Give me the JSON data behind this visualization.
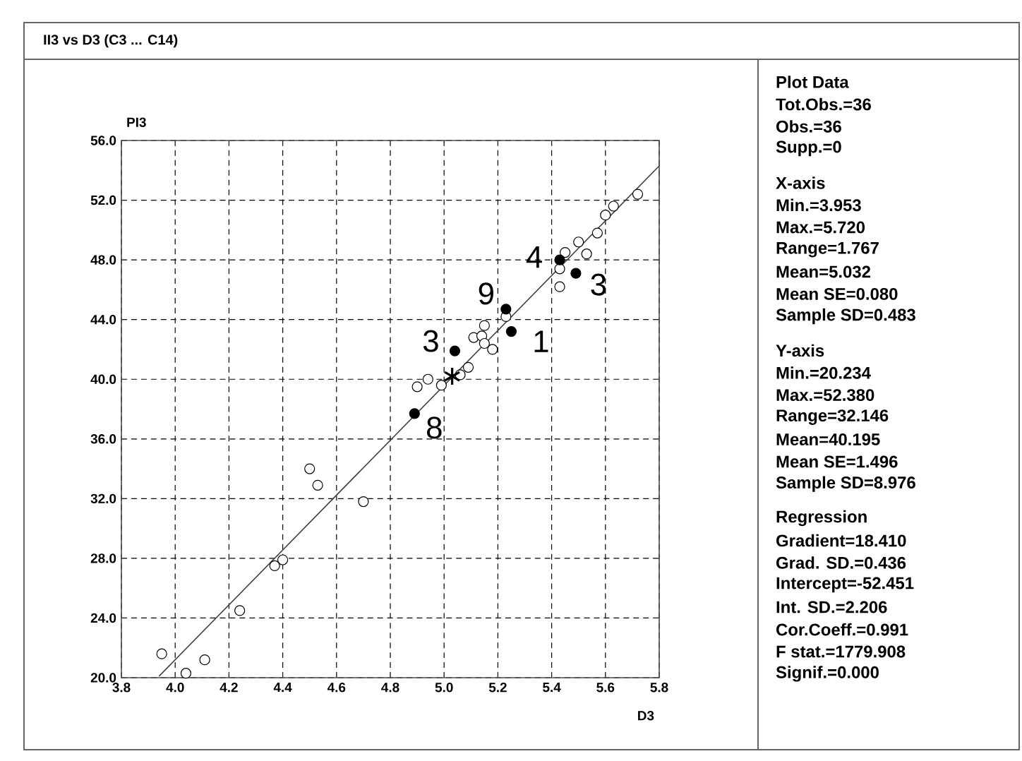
{
  "chart_data": {
    "type": "scatter",
    "title": "II3 vs D3 (C3 ... C14)",
    "xlabel": "D3",
    "ylabel": "PI3",
    "xlim": [
      3.8,
      5.8
    ],
    "ylim": [
      20,
      56
    ],
    "xticks": [
      3.8,
      {
        "value": 4,
        "label": "4.0"
      },
      4.2,
      4.4,
      4.6,
      4.8,
      {
        "value": 5,
        "label": "5.0"
      },
      5.2,
      5.4,
      5.6,
      5.8
    ],
    "yticks": [
      {
        "value": 20,
        "label": "20.0"
      },
      {
        "value": 24,
        "label": "24.0"
      },
      {
        "value": 28,
        "label": "28.0"
      },
      {
        "value": 32,
        "label": "32.0"
      },
      {
        "value": 36,
        "label": "36.0"
      },
      {
        "value": 40,
        "label": "40.0"
      },
      {
        "value": 44,
        "label": "44.0"
      },
      {
        "value": 48,
        "label": "48.0"
      },
      {
        "value": 52,
        "label": "52.0"
      },
      {
        "value": 56,
        "label": "56.0"
      }
    ],
    "grid": true,
    "series": [
      {
        "type": "line",
        "color": "#404040",
        "marker": "none",
        "x": [
          3.94,
          5.8
        ],
        "values": [
          20.1,
          54.3
        ]
      },
      {
        "type": "scatter",
        "color": "#ffffff",
        "marker": "circle",
        "x": [
          3.95,
          4.04,
          4.11,
          4.24,
          4.37,
          4.4,
          4.5,
          4.53,
          4.7,
          4.9,
          4.94,
          4.99,
          5.06,
          5.09,
          5.11,
          5.14,
          5.15,
          5.15,
          5.18,
          5.23,
          5.43,
          5.43,
          5.45,
          5.5,
          5.53,
          5.57,
          5.6,
          5.63,
          5.72
        ],
        "values": [
          21.6,
          20.3,
          21.2,
          24.5,
          27.5,
          27.9,
          34.0,
          32.9,
          31.8,
          39.5,
          40.0,
          39.6,
          40.3,
          40.8,
          42.8,
          42.9,
          42.4,
          43.6,
          42.0,
          44.2,
          47.4,
          46.2,
          48.5,
          49.2,
          48.4,
          49.8,
          51.0,
          51.6,
          52.4
        ]
      },
      {
        "type": "scatter",
        "color": "#000000",
        "marker": "circle",
        "x": [
          4.89,
          5.04,
          5.23,
          5.25,
          5.43,
          5.49
        ],
        "values": [
          37.7,
          41.9,
          44.7,
          43.2,
          48.0,
          47.1
        ]
      },
      {
        "type": "scatter",
        "color": "#000000",
        "marker": "cross",
        "x": [
          5.03
        ],
        "values": [
          40.2
        ]
      }
    ],
    "annotations": [
      {
        "text": "3",
        "x": 5.04,
        "y": 41.9
      },
      {
        "text": "8",
        "x": 4.89,
        "y": 37.7
      },
      {
        "text": "9",
        "x": 5.23,
        "y": 44.7
      },
      {
        "text": "1",
        "x": 5.25,
        "y": 43.2
      },
      {
        "text": "4",
        "x": 5.43,
        "y": 48.0
      },
      {
        "text": "3",
        "x": 5.49,
        "y": 47.1
      },
      "Plot Data",
      "Tot.Obs.=36",
      "Obs.=36",
      "Supp.=0",
      "X-axis",
      "Min.=3.953",
      "Max.=5.720",
      "Range=1.767",
      "Mean=5.032",
      "Mean SE=0.080",
      "Sample SD=0.483",
      "Y-axis",
      "Min.=20.234",
      "Max.=52.380",
      "Range=32.146",
      "Mean=40.195",
      "Mean SE=1.496",
      "Sample SD=8.976",
      "Regression",
      "Gradient=18.410",
      "Grad. SD.=0.436",
      "Intercept=-52.451",
      "Int. SD.=2.206",
      "Cor.Coeff.=0.991",
      "F stat.=1779.908",
      "Signif.=0.000"
    ]
  }
}
